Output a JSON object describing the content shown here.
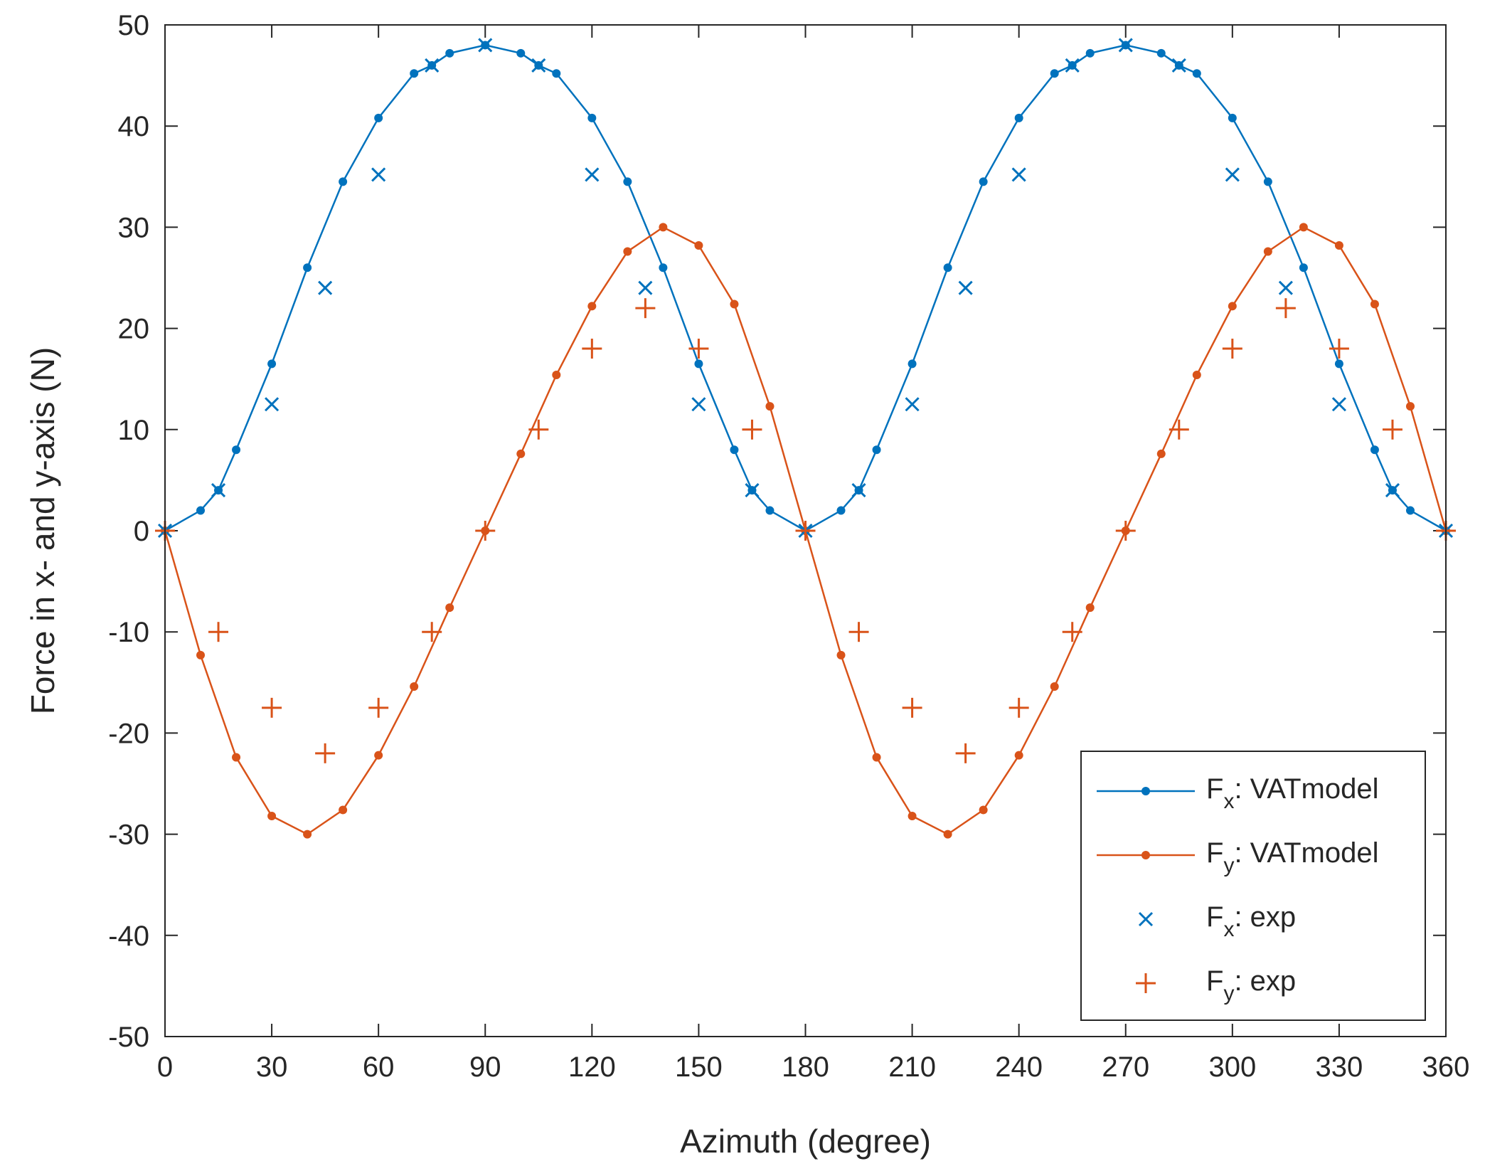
{
  "chart_data": {
    "type": "line",
    "title": "",
    "xlabel": "Azimuth (degree)",
    "ylabel": "Force in x- and y-axis (N)",
    "xlim": [
      0,
      360
    ],
    "ylim": [
      -50,
      50
    ],
    "xticks": [
      0,
      30,
      60,
      90,
      120,
      150,
      180,
      210,
      240,
      270,
      300,
      330,
      360
    ],
    "yticks": [
      -50,
      -40,
      -30,
      -20,
      -10,
      0,
      10,
      20,
      30,
      40,
      50
    ],
    "grid": false,
    "legend_position": "bottom-right",
    "series": [
      {
        "name": "Fx: VATmodel",
        "label_main": "F",
        "label_sub": "x",
        "label_rest": ": VATmodel",
        "style": "line-dot",
        "color": "#0072BD",
        "x": [
          0,
          10,
          15,
          20,
          30,
          40,
          50,
          60,
          70,
          75,
          80,
          90,
          100,
          105,
          110,
          120,
          130,
          140,
          150,
          160,
          165,
          170,
          180,
          190,
          195,
          200,
          210,
          220,
          230,
          240,
          250,
          255,
          260,
          270,
          280,
          285,
          290,
          300,
          310,
          320,
          330,
          340,
          345,
          350,
          360
        ],
        "y": [
          0,
          2,
          4,
          8,
          16.5,
          26,
          34.5,
          40.8,
          45.2,
          46,
          47.2,
          48,
          47.2,
          46,
          45.2,
          40.8,
          34.5,
          26,
          16.5,
          8,
          4,
          2,
          0,
          2,
          4,
          8,
          16.5,
          26,
          34.5,
          40.8,
          45.2,
          46,
          47.2,
          48,
          47.2,
          46,
          45.2,
          40.8,
          34.5,
          26,
          16.5,
          8,
          4,
          2,
          0
        ]
      },
      {
        "name": "Fy: VATmodel",
        "label_main": "F",
        "label_sub": "y",
        "label_rest": ": VATmodel",
        "style": "line-dot",
        "color": "#D95319",
        "x": [
          0,
          10,
          20,
          30,
          40,
          50,
          60,
          70,
          80,
          90,
          100,
          110,
          120,
          130,
          140,
          150,
          160,
          170,
          180,
          190,
          200,
          210,
          220,
          230,
          240,
          250,
          260,
          270,
          280,
          290,
          300,
          310,
          320,
          330,
          340,
          350,
          360
        ],
        "y": [
          0,
          -12.3,
          -22.4,
          -28.2,
          -30,
          -27.6,
          -22.2,
          -15.4,
          -7.6,
          0,
          7.6,
          15.4,
          22.2,
          27.6,
          30,
          28.2,
          22.4,
          12.3,
          0,
          -12.3,
          -22.4,
          -28.2,
          -30,
          -27.6,
          -22.2,
          -15.4,
          -7.6,
          0,
          7.6,
          15.4,
          22.2,
          27.6,
          30,
          28.2,
          22.4,
          12.3,
          0
        ]
      },
      {
        "name": "Fx: exp",
        "label_main": "F",
        "label_sub": "x",
        "label_rest": ": exp",
        "style": "cross",
        "color": "#0072BD",
        "x": [
          0,
          15,
          30,
          45,
          60,
          75,
          90,
          105,
          120,
          135,
          150,
          165,
          180,
          195,
          210,
          225,
          240,
          255,
          270,
          285,
          300,
          315,
          330,
          345,
          360
        ],
        "y": [
          0,
          4,
          12.5,
          24,
          35.2,
          46,
          48,
          46,
          35.2,
          24,
          12.5,
          4,
          0,
          4,
          12.5,
          24,
          35.2,
          46,
          48,
          46,
          35.2,
          24,
          12.5,
          4,
          0
        ]
      },
      {
        "name": "Fy: exp",
        "label_main": "F",
        "label_sub": "y",
        "label_rest": ": exp",
        "style": "plus",
        "color": "#D95319",
        "x": [
          0,
          15,
          30,
          45,
          60,
          75,
          90,
          105,
          120,
          135,
          150,
          165,
          180,
          195,
          210,
          225,
          240,
          255,
          270,
          285,
          300,
          315,
          330,
          345,
          360
        ],
        "y": [
          0,
          -10,
          -17.5,
          -22,
          -17.5,
          -10,
          0,
          10,
          18,
          22,
          18,
          10,
          0,
          -10,
          -17.5,
          -22,
          -17.5,
          -10,
          0,
          10,
          18,
          22,
          18,
          10,
          0
        ]
      }
    ]
  }
}
